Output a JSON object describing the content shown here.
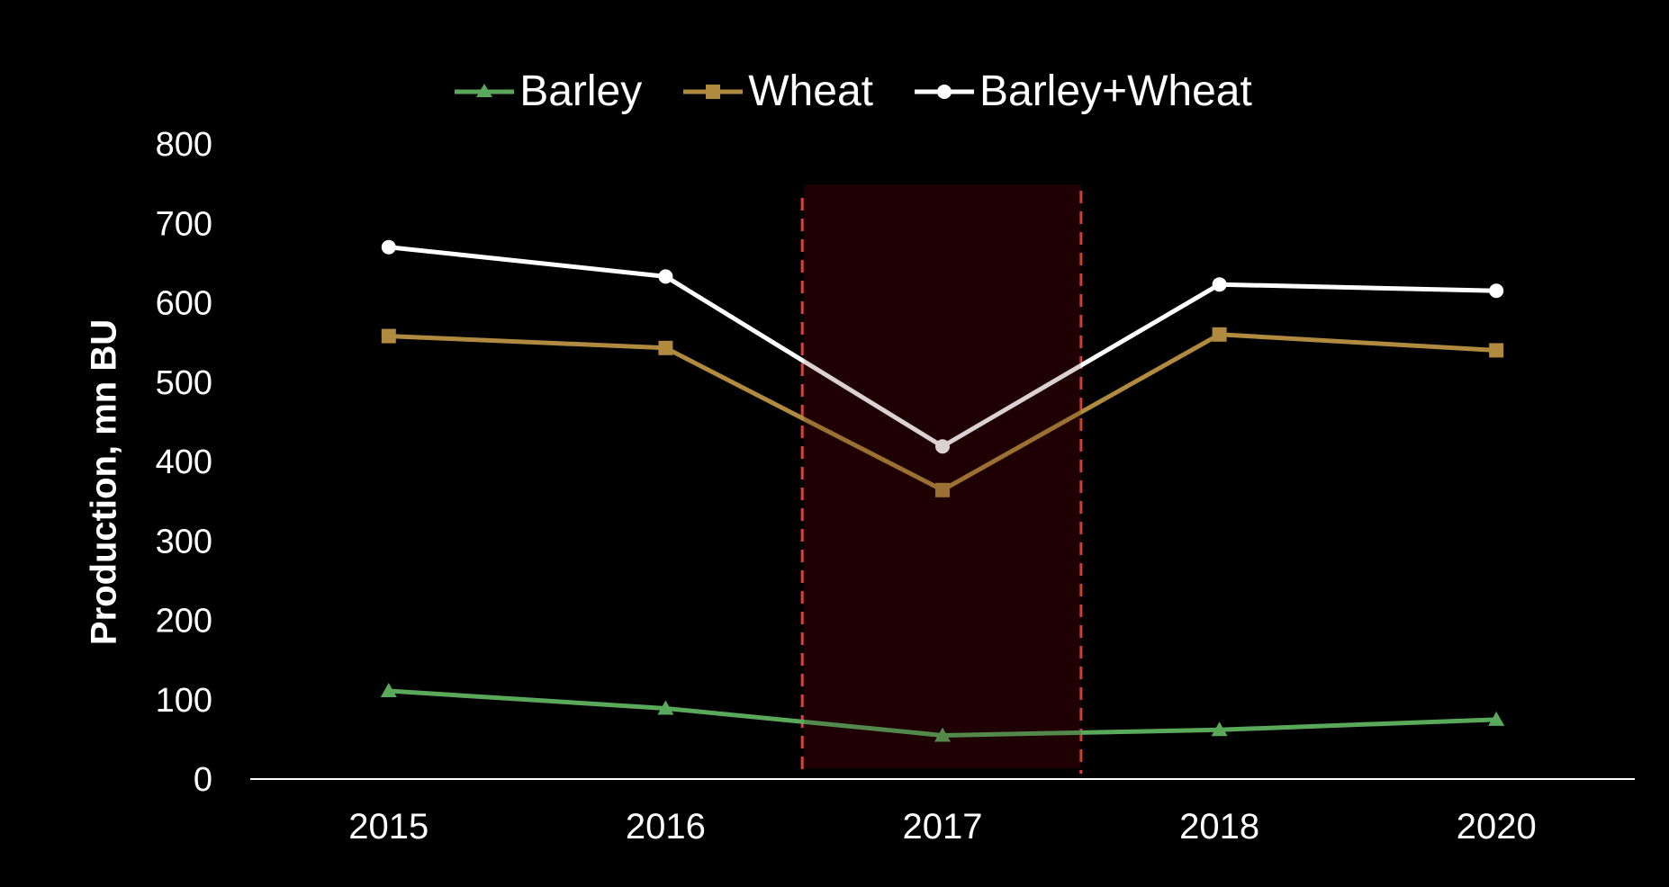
{
  "chart_data": {
    "type": "line",
    "title": "",
    "xlabel": "",
    "ylabel": "Production, mn BU",
    "categories": [
      "2015",
      "2016",
      "2017",
      "2018",
      "2020"
    ],
    "ylim": [
      0,
      800
    ],
    "yticks": [
      "0",
      "100",
      "200",
      "300",
      "400",
      "500",
      "600",
      "700",
      "800"
    ],
    "grid": false,
    "legend_position": "top",
    "highlight": {
      "from_category": "2016",
      "to_category": "2018",
      "color": "#1a0003",
      "border_color": "#e0423a"
    },
    "series": [
      {
        "name": "Barley",
        "values": [
          111,
          89,
          55,
          62,
          75
        ],
        "color": "#5aa85a",
        "marker": "triangle"
      },
      {
        "name": "Wheat",
        "values": [
          558,
          543,
          364,
          560,
          540
        ],
        "color": "#b08a3e",
        "marker": "square"
      },
      {
        "name": "Barley+Wheat",
        "values": [
          670,
          633,
          419,
          623,
          615
        ],
        "color": "#ffffff",
        "marker": "circle"
      }
    ]
  }
}
